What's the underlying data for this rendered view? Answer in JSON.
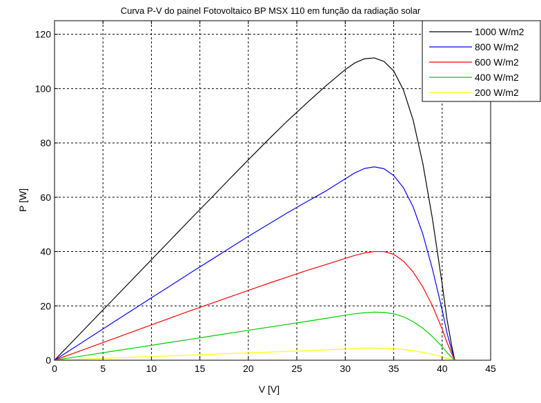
{
  "chart_data": {
    "type": "line",
    "title": "Curva P-V do painel Fotovoltaico BP MSX 110 em função da radiação solar",
    "xlabel": "V [V]",
    "ylabel": "P [W]",
    "xlim": [
      0,
      45
    ],
    "ylim": [
      0,
      125
    ],
    "xticks": [
      0,
      5,
      10,
      15,
      20,
      25,
      30,
      35,
      40,
      45
    ],
    "yticks": [
      0,
      20,
      40,
      60,
      80,
      100,
      120
    ],
    "grid": true,
    "grid_style": "dashed",
    "legend_position": "top-right",
    "x": [
      0,
      2,
      4,
      6,
      8,
      10,
      12,
      14,
      16,
      18,
      20,
      22,
      24,
      26,
      28,
      30,
      31,
      32,
      33,
      34,
      35,
      36,
      37,
      38,
      39,
      40,
      40.5,
      41,
      41.3
    ],
    "series": [
      {
        "name": "1000 W/m2",
        "color": "#000000",
        "values": [
          0,
          7.4,
          14.8,
          22.2,
          29.6,
          37.0,
          44.4,
          51.8,
          59.1,
          66.5,
          73.8,
          81.0,
          88.0,
          94.6,
          101.0,
          107.0,
          109.5,
          111.0,
          111.3,
          110.0,
          106.5,
          99.5,
          88.5,
          72.5,
          52.0,
          28.0,
          15.0,
          5.0,
          0
        ]
      },
      {
        "name": "800 W/m2",
        "color": "#0000ff",
        "values": [
          0,
          4.6,
          9.2,
          13.8,
          18.4,
          23.0,
          27.5,
          32.1,
          36.6,
          41.1,
          45.6,
          49.9,
          54.2,
          58.3,
          62.3,
          66.8,
          69.0,
          70.6,
          71.2,
          70.5,
          68.0,
          63.5,
          56.5,
          46.5,
          33.5,
          18.5,
          10.0,
          3.5,
          0
        ]
      },
      {
        "name": "600 W/m2",
        "color": "#ff0000",
        "values": [
          0,
          2.6,
          5.2,
          7.8,
          10.4,
          13.0,
          15.6,
          18.2,
          20.7,
          23.2,
          25.7,
          28.2,
          30.6,
          33.0,
          35.2,
          37.5,
          38.6,
          39.5,
          40.0,
          40.0,
          39.0,
          36.5,
          32.5,
          27.0,
          20.0,
          11.5,
          6.5,
          2.3,
          0
        ]
      },
      {
        "name": "400 W/m2",
        "color": "#00cc00",
        "values": [
          0,
          1.1,
          2.2,
          3.3,
          4.4,
          5.5,
          6.6,
          7.7,
          8.8,
          9.9,
          11.0,
          12.1,
          13.2,
          14.3,
          15.4,
          16.6,
          17.1,
          17.5,
          17.7,
          17.6,
          17.1,
          16.0,
          14.2,
          11.8,
          8.7,
          5.0,
          2.8,
          1.0,
          0
        ]
      },
      {
        "name": "200 W/m2",
        "color": "#ffff00",
        "values": [
          0,
          0.27,
          0.54,
          0.81,
          1.08,
          1.35,
          1.62,
          1.89,
          2.16,
          2.43,
          2.7,
          2.97,
          3.24,
          3.51,
          3.78,
          4.1,
          4.25,
          4.4,
          4.45,
          4.4,
          4.2,
          3.95,
          3.5,
          2.9,
          2.15,
          1.25,
          0.7,
          0.25,
          0
        ]
      }
    ]
  }
}
